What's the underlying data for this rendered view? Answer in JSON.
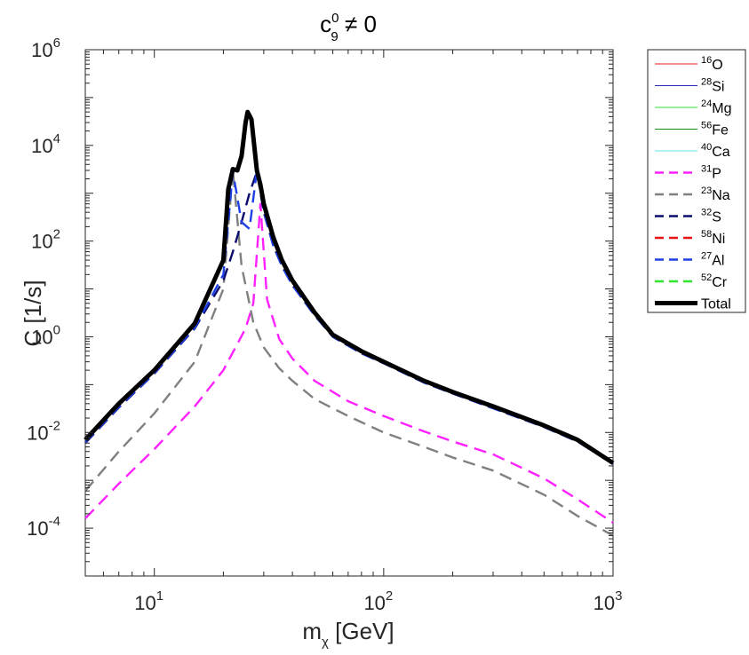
{
  "chart_data": {
    "type": "line",
    "title": {
      "base": "c",
      "sub": "9",
      "sup": "0",
      "rest": " ≠ 0"
    },
    "xlabel": {
      "base": "m",
      "sub": "χ",
      "rest": " [GeV]"
    },
    "ylabel": "C [1/s]",
    "xscale": "log",
    "yscale": "log",
    "xlim": [
      5,
      1000
    ],
    "ylim": [
      1e-05,
      1000000.0
    ],
    "grid": false,
    "legend_position": "outside-top-right",
    "x_ticks": [
      {
        "value": 10,
        "base": "10",
        "exp": "1"
      },
      {
        "value": 100,
        "base": "10",
        "exp": "2"
      },
      {
        "value": 1000,
        "base": "10",
        "exp": "3"
      }
    ],
    "y_ticks": [
      {
        "value": 0.0001,
        "base": "10",
        "exp": "-4"
      },
      {
        "value": 0.01,
        "base": "10",
        "exp": "-2"
      },
      {
        "value": 1,
        "base": "10",
        "exp": "0"
      },
      {
        "value": 100,
        "base": "10",
        "exp": "2"
      },
      {
        "value": 10000,
        "base": "10",
        "exp": "4"
      },
      {
        "value": 1000000,
        "base": "10",
        "exp": "6"
      }
    ],
    "series": [
      {
        "name": "16O",
        "iso_mass": "16",
        "element": "O",
        "color": "#e8141c",
        "dash": "solid",
        "thin": true,
        "drawn": false
      },
      {
        "name": "28Si",
        "iso_mass": "28",
        "element": "Si",
        "color": "#2b2bb4",
        "dash": "solid",
        "thin": true,
        "drawn": false
      },
      {
        "name": "24Mg",
        "iso_mass": "24",
        "element": "Mg",
        "color": "#33dd33",
        "dash": "solid",
        "thin": true,
        "drawn": false
      },
      {
        "name": "56Fe",
        "iso_mass": "56",
        "element": "Fe",
        "color": "#1a8a1a",
        "dash": "solid",
        "thin": true,
        "drawn": false
      },
      {
        "name": "40Ca",
        "iso_mass": "40",
        "element": "Ca",
        "color": "#66e6e6",
        "dash": "solid",
        "thin": true,
        "drawn": false
      },
      {
        "name": "31P",
        "iso_mass": "31",
        "element": "P",
        "color": "#ff22ff",
        "dash": "dashed",
        "thin": false,
        "drawn": true,
        "x": [
          5,
          7,
          10,
          15,
          20,
          25,
          27,
          29,
          31,
          35,
          40,
          50,
          70,
          100,
          150,
          200,
          300,
          500,
          700,
          1000
        ],
        "y": [
          0.00016,
          0.00085,
          0.0045,
          0.035,
          0.2,
          1.5,
          5,
          600,
          6,
          0.9,
          0.35,
          0.12,
          0.045,
          0.022,
          0.0105,
          0.0065,
          0.0035,
          0.0011,
          0.0004,
          0.00013
        ]
      },
      {
        "name": "23Na",
        "iso_mass": "23",
        "element": "Na",
        "color": "#808080",
        "dash": "dashed",
        "thin": false,
        "drawn": true,
        "x": [
          5,
          7,
          10,
          15,
          20,
          22,
          24,
          27,
          30,
          35,
          40,
          50,
          70,
          100,
          150,
          200,
          300,
          500,
          700,
          1000
        ],
        "y": [
          0.0006,
          0.004,
          0.025,
          0.3,
          10,
          3000,
          30,
          2,
          0.6,
          0.22,
          0.12,
          0.05,
          0.022,
          0.01,
          0.005,
          0.003,
          0.0016,
          0.0005,
          0.00018,
          7e-05
        ]
      },
      {
        "name": "32S",
        "iso_mass": "32",
        "element": "S",
        "color": "#0b0b6e",
        "dash": "dashed",
        "thin": false,
        "drawn": true,
        "x": [
          5,
          7,
          10,
          15,
          20,
          22,
          24,
          26,
          28,
          30,
          33,
          36,
          40,
          50,
          60,
          80,
          100,
          150,
          200,
          300,
          500,
          700,
          1000
        ],
        "y": [
          0.006,
          0.033,
          0.17,
          1.5,
          15,
          60,
          250,
          1000,
          2800,
          400,
          80,
          30,
          12,
          2.8,
          1.0,
          0.45,
          0.28,
          0.11,
          0.065,
          0.032,
          0.013,
          0.0065,
          0.0022
        ]
      },
      {
        "name": "58Ni",
        "iso_mass": "58",
        "element": "Ni",
        "color": "#ee1111",
        "dash": "dashed",
        "thin": false,
        "drawn": false
      },
      {
        "name": "27Al",
        "iso_mass": "27",
        "element": "Al",
        "color": "#1d3fe6",
        "dash": "dashed",
        "thin": false,
        "drawn": true,
        "x": [
          5,
          7,
          10,
          15,
          20,
          22,
          24,
          26,
          28,
          30,
          33,
          36,
          40,
          50,
          60,
          80,
          100,
          150,
          200,
          300,
          500,
          700,
          1000
        ],
        "y": [
          0.0062,
          0.034,
          0.175,
          1.55,
          20,
          2800,
          250,
          180,
          3000,
          420,
          80,
          30,
          12,
          2.8,
          1.0,
          0.45,
          0.28,
          0.11,
          0.065,
          0.032,
          0.013,
          0.0065,
          0.0022
        ]
      },
      {
        "name": "52Cr",
        "iso_mass": "52",
        "element": "Cr",
        "color": "#2ee62e",
        "dash": "dashed",
        "thin": false,
        "drawn": false
      },
      {
        "name": "Total",
        "iso_mass": "",
        "element": "Total",
        "color": "#000000",
        "dash": "solid",
        "thin": false,
        "bold": true,
        "drawn": true,
        "x": [
          5,
          7,
          10,
          15,
          20,
          21,
          22,
          23,
          24,
          25,
          25.5,
          26.5,
          28,
          29,
          30,
          33,
          36,
          40,
          50,
          60,
          80,
          100,
          150,
          200,
          300,
          500,
          700,
          1000
        ],
        "y": [
          0.007,
          0.04,
          0.2,
          1.9,
          40,
          1200,
          3200,
          3000,
          6000,
          30000,
          50000,
          35000,
          3000,
          1500,
          600,
          120,
          40,
          15,
          3.2,
          1.1,
          0.5,
          0.3,
          0.12,
          0.07,
          0.035,
          0.014,
          0.007,
          0.0023
        ]
      }
    ]
  }
}
